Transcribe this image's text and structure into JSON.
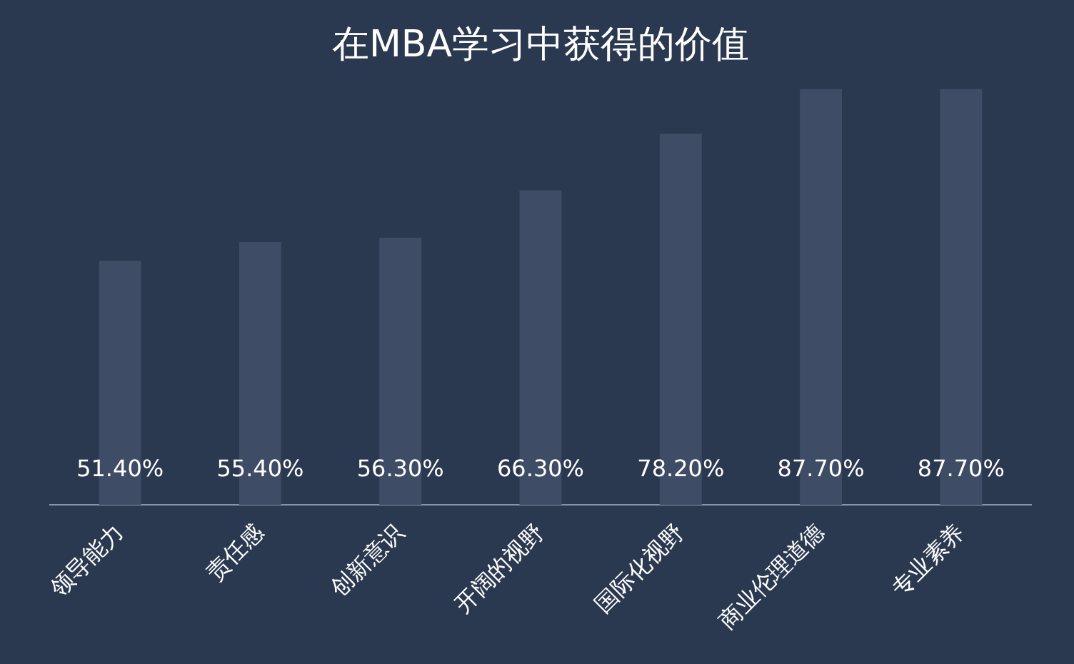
{
  "chart_data": {
    "type": "bar",
    "title": "在MBA学习中获得的价值",
    "categories": [
      "领导能力",
      "责任感",
      "创新意识",
      "开阔的视野",
      "国际化视野",
      "商业伦理道德",
      "专业素养"
    ],
    "values": [
      51.4,
      55.4,
      56.3,
      66.3,
      78.2,
      87.7,
      87.7
    ],
    "value_labels": [
      "51.40%",
      "55.40%",
      "56.30%",
      "66.30%",
      "78.20%",
      "87.70%",
      "87.70%"
    ],
    "color": "#3f4c66",
    "grid": false,
    "legend": false
  }
}
